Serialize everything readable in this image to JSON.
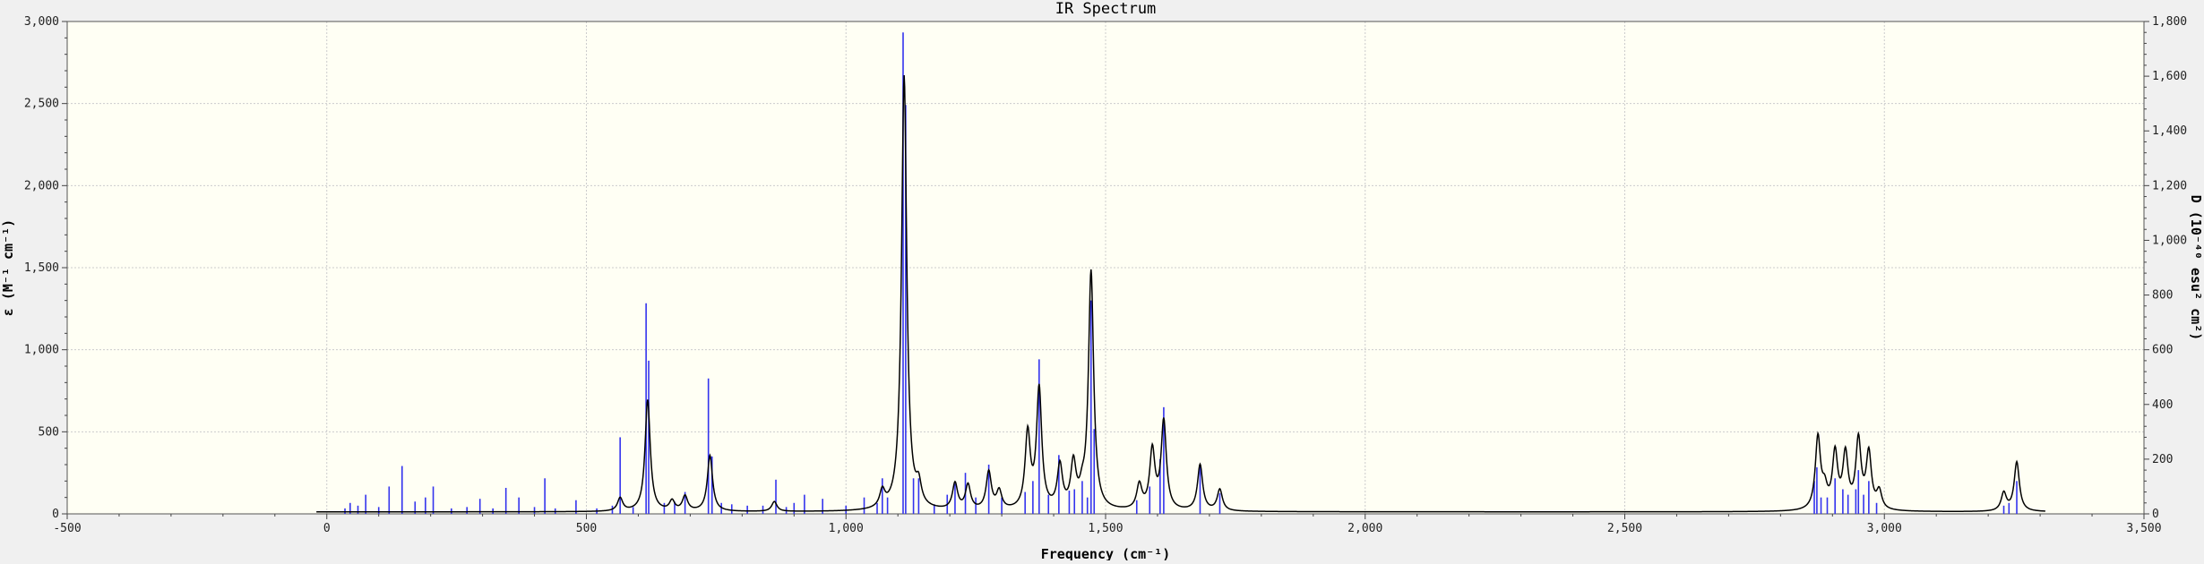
{
  "chart_data": {
    "type": "line",
    "title": "IR Spectrum",
    "xlabel": "Frequency (cm⁻¹)",
    "ylabel_left": "ε (M⁻¹ cm⁻¹)",
    "ylabel_right": "D (10⁻⁴⁰ esu² cm²)",
    "xlim": [
      -500,
      3500
    ],
    "ylim_left": [
      0,
      3000
    ],
    "ylim_right": [
      0,
      1800
    ],
    "grid": true,
    "xticks": [
      -500,
      0,
      500,
      1000,
      1500,
      2000,
      2500,
      3000,
      3500
    ],
    "xtick_labels": [
      "-500",
      "0",
      "500",
      "1,000",
      "1,500",
      "2,000",
      "2,500",
      "3,000",
      "3,500"
    ],
    "yticks_left": [
      0,
      500,
      1000,
      1500,
      2000,
      2500,
      3000
    ],
    "ytick_labels_left": [
      "0",
      "500",
      "1,000",
      "1,500",
      "2,000",
      "2,500",
      "3,000"
    ],
    "yticks_right": [
      0,
      200,
      400,
      600,
      800,
      1000,
      1200,
      1400,
      1600,
      1800
    ],
    "ytick_labels_right": [
      "0",
      "200",
      "400",
      "600",
      "800",
      "1,000",
      "1,200",
      "1,400",
      "1,600",
      "1,800"
    ],
    "spectrum_range": [
      -20,
      3310
    ],
    "series": [
      {
        "kind": "spectrum",
        "axis": "left",
        "color": "#000000",
        "lorentz_hwhm": 6,
        "peaks": [
          {
            "x": 565,
            "y": 80
          },
          {
            "x": 618,
            "y": 680
          },
          {
            "x": 665,
            "y": 60
          },
          {
            "x": 690,
            "y": 90
          },
          {
            "x": 738,
            "y": 340
          },
          {
            "x": 862,
            "y": 60
          },
          {
            "x": 1070,
            "y": 100
          },
          {
            "x": 1112,
            "y": 2650
          },
          {
            "x": 1140,
            "y": 120
          },
          {
            "x": 1210,
            "y": 160
          },
          {
            "x": 1235,
            "y": 150
          },
          {
            "x": 1275,
            "y": 230
          },
          {
            "x": 1295,
            "y": 110
          },
          {
            "x": 1350,
            "y": 460
          },
          {
            "x": 1372,
            "y": 730
          },
          {
            "x": 1412,
            "y": 260
          },
          {
            "x": 1438,
            "y": 270
          },
          {
            "x": 1455,
            "y": 80
          },
          {
            "x": 1472,
            "y": 1450
          },
          {
            "x": 1565,
            "y": 150
          },
          {
            "x": 1590,
            "y": 360
          },
          {
            "x": 1612,
            "y": 540
          },
          {
            "x": 1682,
            "y": 280
          },
          {
            "x": 1720,
            "y": 130
          },
          {
            "x": 2872,
            "y": 440
          },
          {
            "x": 2885,
            "y": 110
          },
          {
            "x": 2905,
            "y": 340
          },
          {
            "x": 2925,
            "y": 330
          },
          {
            "x": 2950,
            "y": 420
          },
          {
            "x": 2970,
            "y": 340
          },
          {
            "x": 2990,
            "y": 110
          },
          {
            "x": 3230,
            "y": 110
          },
          {
            "x": 3255,
            "y": 300
          }
        ]
      },
      {
        "kind": "sticks",
        "axis": "right",
        "color": "#3333ee",
        "sticks": [
          {
            "x": 35,
            "y": 20
          },
          {
            "x": 45,
            "y": 40
          },
          {
            "x": 60,
            "y": 30
          },
          {
            "x": 75,
            "y": 70
          },
          {
            "x": 100,
            "y": 25
          },
          {
            "x": 120,
            "y": 100
          },
          {
            "x": 145,
            "y": 175
          },
          {
            "x": 170,
            "y": 45
          },
          {
            "x": 190,
            "y": 60
          },
          {
            "x": 205,
            "y": 100
          },
          {
            "x": 240,
            "y": 20
          },
          {
            "x": 270,
            "y": 25
          },
          {
            "x": 295,
            "y": 55
          },
          {
            "x": 320,
            "y": 20
          },
          {
            "x": 345,
            "y": 95
          },
          {
            "x": 370,
            "y": 60
          },
          {
            "x": 400,
            "y": 25
          },
          {
            "x": 420,
            "y": 130
          },
          {
            "x": 440,
            "y": 20
          },
          {
            "x": 480,
            "y": 50
          },
          {
            "x": 520,
            "y": 20
          },
          {
            "x": 550,
            "y": 30
          },
          {
            "x": 565,
            "y": 280
          },
          {
            "x": 590,
            "y": 25
          },
          {
            "x": 615,
            "y": 770
          },
          {
            "x": 620,
            "y": 560
          },
          {
            "x": 650,
            "y": 40
          },
          {
            "x": 670,
            "y": 45
          },
          {
            "x": 690,
            "y": 80
          },
          {
            "x": 735,
            "y": 495
          },
          {
            "x": 742,
            "y": 210
          },
          {
            "x": 760,
            "y": 40
          },
          {
            "x": 780,
            "y": 35
          },
          {
            "x": 810,
            "y": 30
          },
          {
            "x": 840,
            "y": 30
          },
          {
            "x": 865,
            "y": 125
          },
          {
            "x": 885,
            "y": 25
          },
          {
            "x": 900,
            "y": 40
          },
          {
            "x": 920,
            "y": 70
          },
          {
            "x": 955,
            "y": 55
          },
          {
            "x": 1000,
            "y": 30
          },
          {
            "x": 1035,
            "y": 60
          },
          {
            "x": 1060,
            "y": 40
          },
          {
            "x": 1070,
            "y": 130
          },
          {
            "x": 1080,
            "y": 60
          },
          {
            "x": 1110,
            "y": 1760
          },
          {
            "x": 1115,
            "y": 1495
          },
          {
            "x": 1130,
            "y": 130
          },
          {
            "x": 1140,
            "y": 130
          },
          {
            "x": 1170,
            "y": 35
          },
          {
            "x": 1195,
            "y": 70
          },
          {
            "x": 1210,
            "y": 110
          },
          {
            "x": 1230,
            "y": 150
          },
          {
            "x": 1250,
            "y": 60
          },
          {
            "x": 1275,
            "y": 180
          },
          {
            "x": 1300,
            "y": 60
          },
          {
            "x": 1345,
            "y": 80
          },
          {
            "x": 1360,
            "y": 120
          },
          {
            "x": 1372,
            "y": 565
          },
          {
            "x": 1390,
            "y": 70
          },
          {
            "x": 1410,
            "y": 215
          },
          {
            "x": 1430,
            "y": 85
          },
          {
            "x": 1440,
            "y": 90
          },
          {
            "x": 1455,
            "y": 120
          },
          {
            "x": 1465,
            "y": 60
          },
          {
            "x": 1472,
            "y": 780
          },
          {
            "x": 1478,
            "y": 310
          },
          {
            "x": 1560,
            "y": 50
          },
          {
            "x": 1585,
            "y": 100
          },
          {
            "x": 1605,
            "y": 200
          },
          {
            "x": 1612,
            "y": 390
          },
          {
            "x": 1682,
            "y": 180
          },
          {
            "x": 1720,
            "y": 75
          },
          {
            "x": 2865,
            "y": 120
          },
          {
            "x": 2870,
            "y": 170
          },
          {
            "x": 2878,
            "y": 60
          },
          {
            "x": 2890,
            "y": 60
          },
          {
            "x": 2905,
            "y": 130
          },
          {
            "x": 2920,
            "y": 90
          },
          {
            "x": 2930,
            "y": 70
          },
          {
            "x": 2945,
            "y": 90
          },
          {
            "x": 2950,
            "y": 160
          },
          {
            "x": 2960,
            "y": 70
          },
          {
            "x": 2970,
            "y": 120
          },
          {
            "x": 2985,
            "y": 40
          },
          {
            "x": 3230,
            "y": 30
          },
          {
            "x": 3240,
            "y": 40
          },
          {
            "x": 3255,
            "y": 120
          }
        ]
      }
    ]
  }
}
